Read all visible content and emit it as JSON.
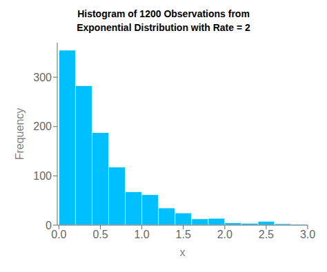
{
  "chart_data": {
    "type": "histogram",
    "title": "Histogram of 1200 Observations from\nExponential Distribution with Rate = 2",
    "xlabel": "x",
    "ylabel": "Frequency",
    "bins": [
      0.0,
      0.2,
      0.4,
      0.6,
      0.8,
      1.0,
      1.2,
      1.4,
      1.6,
      1.8,
      2.0,
      2.2,
      2.4,
      2.6,
      2.8,
      3.0
    ],
    "values": [
      355,
      283,
      188,
      118,
      68,
      62,
      35,
      25,
      13,
      14,
      5,
      4,
      8,
      3,
      2
    ],
    "color": "#00BFFF",
    "xlim": [
      -0.02,
      3.0
    ],
    "ylim": [
      0,
      370
    ],
    "xticks": [
      {
        "value": 0,
        "label": "0.0"
      },
      0.5,
      {
        "value": 1,
        "label": "1.0"
      },
      1.5,
      {
        "value": 2,
        "label": "2.0"
      },
      2.5,
      {
        "value": 3,
        "label": "3.0"
      }
    ],
    "yticks": [
      0,
      100,
      200,
      300
    ],
    "grid": false
  }
}
